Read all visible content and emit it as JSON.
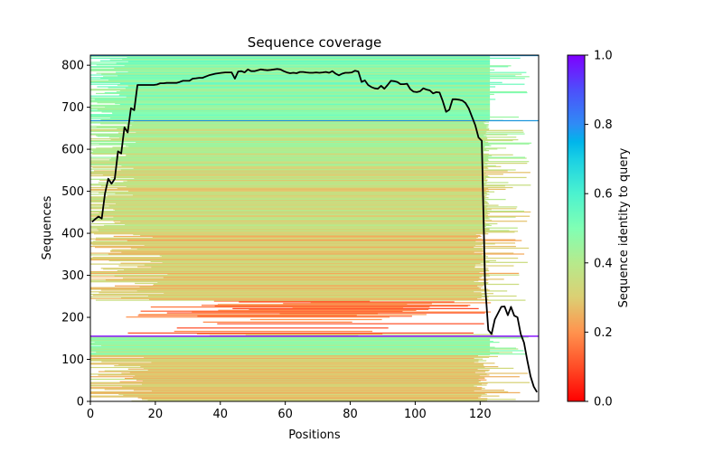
{
  "chart_data": {
    "type": "heatmap",
    "title": "Sequence coverage",
    "xlabel": "Positions",
    "ylabel": "Sequences",
    "xlim": [
      0,
      138
    ],
    "ylim": [
      0,
      824
    ],
    "xticks": [
      0,
      20,
      40,
      60,
      80,
      100,
      120
    ],
    "yticks": [
      0,
      100,
      200,
      300,
      400,
      500,
      600,
      700,
      800
    ],
    "colorbar": {
      "label": "Sequence identity to query",
      "range": [
        0.0,
        1.0
      ],
      "ticks": [
        0.0,
        0.2,
        0.4,
        0.6,
        0.8,
        1.0
      ],
      "tick_labels": [
        "0.0",
        "0.2",
        "0.4",
        "0.6",
        "0.8",
        "1.0"
      ],
      "colormap": "rainbow_r"
    },
    "horizontal_lines": [
      {
        "y": 155,
        "identity": 1.0,
        "color": "#7f00ff"
      },
      {
        "y": 668,
        "identity": 0.78,
        "color": "#1e96dc"
      },
      {
        "y": 823,
        "identity": 0.78,
        "color": "#1e96dc"
      }
    ],
    "coverage_line": {
      "name": "coverage",
      "color": "#000000",
      "x": [
        0,
        1,
        2,
        3,
        4,
        5,
        6,
        7,
        8,
        9,
        10,
        11,
        12,
        13,
        14,
        15,
        16,
        17,
        18,
        19,
        20,
        21,
        22,
        23,
        24,
        25,
        26,
        27,
        28,
        29,
        30,
        31,
        32,
        33,
        34,
        35,
        36,
        37,
        38,
        39,
        40,
        41,
        42,
        43,
        44,
        45,
        46,
        47,
        48,
        49,
        50,
        51,
        52,
        53,
        54,
        55,
        56,
        57,
        58,
        59,
        60,
        61,
        62,
        63,
        64,
        65,
        66,
        67,
        68,
        69,
        70,
        71,
        72,
        73,
        74,
        75,
        76,
        77,
        78,
        79,
        80,
        81,
        82,
        83,
        84,
        85,
        86,
        87,
        88,
        89,
        90,
        91,
        92,
        93,
        94,
        95,
        96,
        97,
        98,
        99,
        100,
        101,
        102,
        103,
        104,
        105,
        106,
        107,
        108,
        109,
        110,
        111,
        112,
        113,
        114,
        115,
        116,
        117,
        118,
        119,
        120,
        121,
        122,
        123,
        124,
        125,
        126,
        127,
        128,
        129,
        130,
        131,
        132,
        133,
        134,
        135,
        136,
        137
      ],
      "y": [
        427,
        434,
        440,
        435,
        495,
        530,
        518,
        530,
        595,
        590,
        652,
        640,
        698,
        693,
        753,
        753,
        753,
        753,
        753,
        753,
        754,
        757,
        757,
        758,
        758,
        758,
        758,
        760,
        763,
        763,
        763,
        768,
        769,
        770,
        770,
        773,
        776,
        778,
        780,
        781,
        782,
        783,
        783,
        783,
        768,
        785,
        786,
        783,
        790,
        786,
        786,
        788,
        790,
        789,
        788,
        789,
        790,
        791,
        790,
        786,
        783,
        781,
        782,
        781,
        784,
        784,
        783,
        782,
        782,
        783,
        782,
        783,
        784,
        782,
        786,
        780,
        776,
        780,
        782,
        782,
        783,
        787,
        785,
        760,
        764,
        753,
        748,
        745,
        744,
        751,
        744,
        753,
        763,
        762,
        760,
        755,
        755,
        756,
        743,
        737,
        736,
        738,
        745,
        742,
        740,
        733,
        736,
        735,
        714,
        689,
        694,
        719,
        719,
        718,
        716,
        710,
        697,
        677,
        657,
        628,
        620,
        280,
        170,
        160,
        195,
        210,
        225,
        226,
        205,
        225,
        204,
        200,
        160,
        140,
        98,
        60,
        35,
        22
      ]
    },
    "identity_bands": [
      {
        "y_from": 670,
        "y_to": 824,
        "identity": 0.48
      },
      {
        "y_from": 560,
        "y_to": 670,
        "identity": 0.4
      },
      {
        "y_from": 400,
        "y_to": 560,
        "identity": 0.34
      },
      {
        "y_from": 240,
        "y_to": 400,
        "identity": 0.3
      },
      {
        "y_from": 160,
        "y_to": 240,
        "identity": 0.16
      },
      {
        "y_from": 110,
        "y_to": 155,
        "identity": 0.45
      },
      {
        "y_from": 0,
        "y_to": 110,
        "identity": 0.3
      }
    ]
  }
}
